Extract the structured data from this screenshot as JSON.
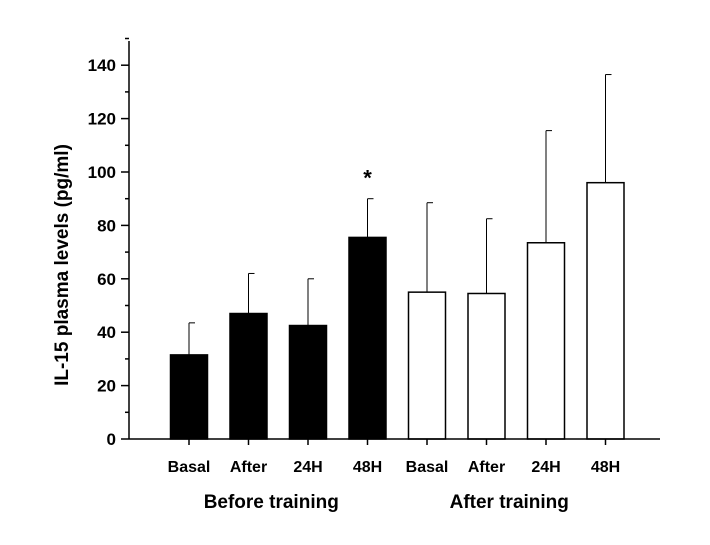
{
  "chart_data": {
    "type": "bar",
    "title": "",
    "xlabel": "",
    "ylabel": "IL-15 plasma levels (pg/ml)",
    "ylim": [
      0,
      150
    ],
    "yticks": [
      "0",
      "20",
      "40",
      "60",
      "80",
      "100",
      "120",
      "140"
    ],
    "grid": false,
    "groups": [
      {
        "label": "Before training",
        "fill": "#000000",
        "categories": [
          "Basal",
          "After",
          "24H",
          "48H"
        ],
        "values": [
          31.5,
          47,
          42.5,
          75.5
        ],
        "error_upper": [
          43.5,
          62,
          60,
          90
        ],
        "annotations": [
          "",
          "",
          "",
          "*"
        ]
      },
      {
        "label": "After training",
        "fill": "#ffffff",
        "categories": [
          "Basal",
          "After",
          "24H",
          "48H"
        ],
        "values": [
          55,
          54.5,
          73.5,
          96
        ],
        "error_upper": [
          88.5,
          82.5,
          115.5,
          136.5
        ],
        "annotations": [
          "",
          "",
          "",
          ""
        ]
      }
    ]
  }
}
